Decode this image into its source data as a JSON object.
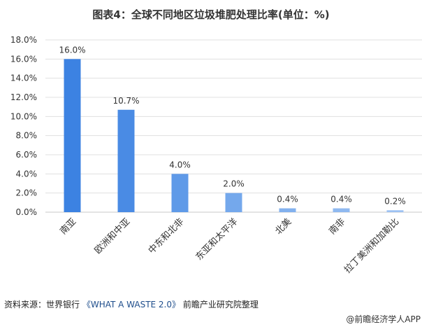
{
  "chart_data": {
    "type": "bar",
    "title": "图表4：全球不同地区垃圾堆肥处理比率(单位：%)",
    "categories": [
      "南亚",
      "欧洲和中亚",
      "中东和北非",
      "东亚和太平洋",
      "北美",
      "南非",
      "拉丁美洲和加勒比"
    ],
    "values": [
      16.0,
      10.7,
      4.0,
      2.0,
      0.4,
      0.4,
      0.2
    ],
    "data_labels": [
      "16.0%",
      "10.7%",
      "4.0%",
      "2.0%",
      "0.4%",
      "0.4%",
      "0.2%"
    ],
    "ylim": [
      0,
      18
    ],
    "yticks": [
      "0.0%",
      "2.0%",
      "4.0%",
      "6.0%",
      "8.0%",
      "10.0%",
      "12.0%",
      "14.0%",
      "16.0%",
      "18.0%"
    ],
    "grid": true,
    "xlabel": "",
    "ylabel": "",
    "colors": [
      "#3c82e2",
      "#4a8be4",
      "#5f9ae8",
      "#74a8ec",
      "#82b1ee",
      "#8fb9f0",
      "#9dc2f2"
    ]
  },
  "source": {
    "prefix": "资料来源：世界银行 ",
    "ref": "《WHAT A WASTE 2.0》",
    "suffix": " 前瞻产业研究院整理"
  },
  "credit": "@前瞻经济学人APP"
}
